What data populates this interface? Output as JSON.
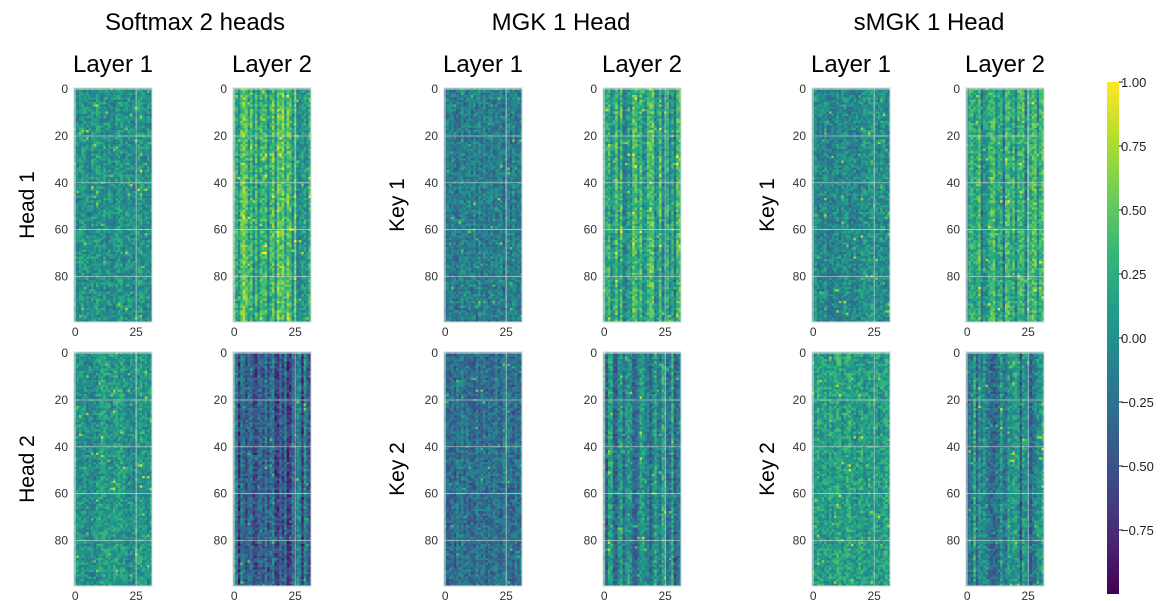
{
  "figure": {
    "panel_titles": [
      "Softmax 2 heads",
      "MGK 1 Head",
      "sMGK 1 Head"
    ],
    "column_titles": [
      "Layer 1",
      "Layer 2",
      "Layer 1",
      "Layer 2",
      "Layer 1",
      "Layer 2"
    ],
    "row_labels": [
      [
        "Head 1",
        "Head 2"
      ],
      [
        "Key 1",
        "Key 2"
      ],
      [
        "Key 1",
        "Key 2"
      ]
    ],
    "y_ticks": [
      "0",
      "20",
      "40",
      "60",
      "80"
    ],
    "x_ticks": [
      "0",
      "25"
    ],
    "colorbar_ticks": [
      "1.00",
      "0.75",
      "0.50",
      "0.25",
      "0.00",
      "−0.25",
      "−0.50",
      "−0.75"
    ],
    "colormap": "viridis",
    "colors": {
      "viridis_low": "#440154",
      "viridis_mid": "#21918c",
      "viridis_high": "#fde725",
      "grid": "#cfd8d6"
    }
  },
  "chart_data": {
    "type": "heatmap",
    "title": "",
    "colorbar_range": [
      -1.0,
      1.0
    ],
    "colorbar_ticks": [
      1.0,
      0.75,
      0.5,
      0.25,
      0.0,
      -0.25,
      -0.5,
      -0.75
    ],
    "matrix_shape": [
      100,
      32
    ],
    "xlim": [
      0,
      31
    ],
    "ylim": [
      0,
      99
    ],
    "panels": [
      {
        "title": "Softmax 2 heads",
        "rows": [
          "Head 1",
          "Head 2"
        ],
        "columns": [
          "Layer 1",
          "Layer 2"
        ]
      },
      {
        "title": "MGK 1 Head",
        "rows": [
          "Key 1",
          "Key 2"
        ],
        "columns": [
          "Layer 1",
          "Layer 2"
        ]
      },
      {
        "title": "sMGK 1 Head",
        "rows": [
          "Key 1",
          "Key 2"
        ],
        "columns": [
          "Layer 1",
          "Layer 2"
        ]
      }
    ],
    "matrix_mean": [
      [
        0.0,
        0.25,
        -0.15,
        0.15,
        -0.05,
        0.15
      ],
      [
        0.05,
        -0.35,
        -0.25,
        -0.1,
        0.1,
        -0.1
      ]
    ]
  }
}
